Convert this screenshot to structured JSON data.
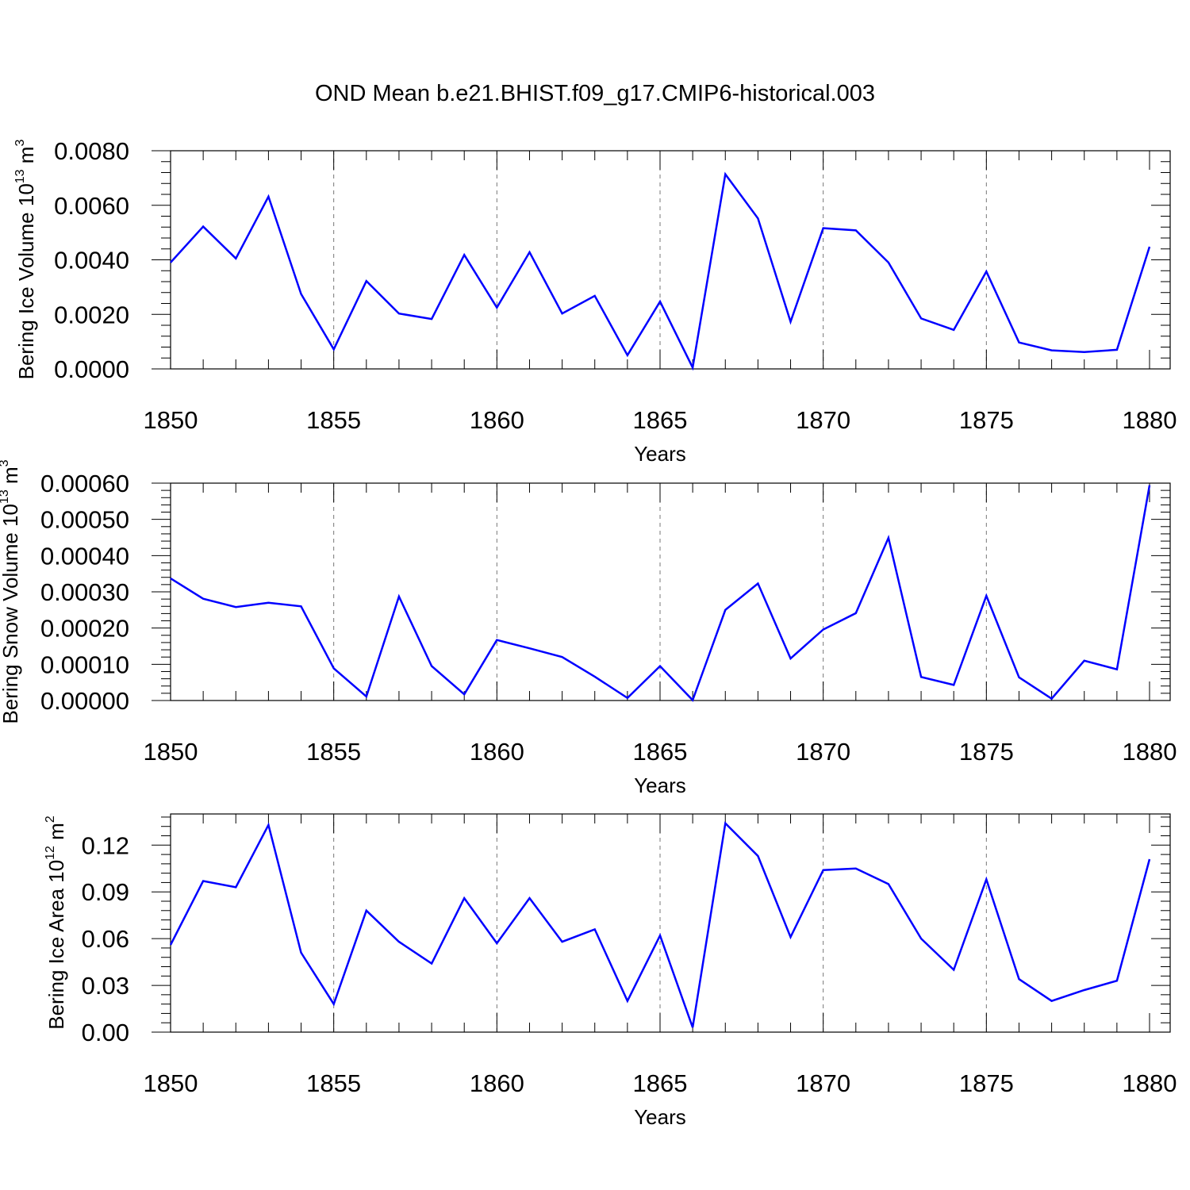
{
  "figure_title": "OND Mean b.e21.BHIST.f09_g17.CMIP6-historical.003",
  "colors": {
    "line": "#0000ff",
    "grid": "#777777",
    "axis": "#000000"
  },
  "chart_data": [
    {
      "type": "line",
      "title": "OND Mean b.e21.BHIST.f09_g17.CMIP6-historical.003",
      "xlabel": "Years",
      "ylabel": {
        "base": "Bering Ice Volume 10",
        "exp": "13",
        "unit": " m",
        "unit_exp": "3"
      },
      "xlim": [
        1850,
        1880
      ],
      "ylim": [
        0,
        0.008
      ],
      "ytick_values": [
        0,
        0.002,
        0.004,
        0.006,
        0.008
      ],
      "ytick_labels": [
        "0.0000",
        "0.0020",
        "0.0040",
        "0.0060",
        "0.0080"
      ],
      "xtick_values": [
        1850,
        1855,
        1860,
        1865,
        1870,
        1875,
        1880
      ],
      "xtick_labels": [
        "1850",
        "1855",
        "1860",
        "1865",
        "1870",
        "1875",
        "1880"
      ],
      "grid": "vertical dashed at major x ticks",
      "series": [
        {
          "name": "Bering Ice Volume",
          "x": [
            1850,
            1851,
            1852,
            1853,
            1854,
            1855,
            1856,
            1857,
            1858,
            1859,
            1860,
            1861,
            1862,
            1863,
            1864,
            1865,
            1866,
            1867,
            1868,
            1869,
            1870,
            1871,
            1872,
            1873,
            1874,
            1875,
            1876,
            1877,
            1878,
            1879,
            1880
          ],
          "values": [
            0.0039,
            0.00522,
            0.00405,
            0.00632,
            0.00275,
            0.00072,
            0.00322,
            0.00203,
            0.00183,
            0.00418,
            0.00225,
            0.00428,
            0.00203,
            0.00268,
            0.0005,
            0.00247,
            5e-05,
            0.00714,
            0.00552,
            0.00173,
            0.00516,
            0.00508,
            0.0039,
            0.00185,
            0.00143,
            0.00357,
            0.00097,
            0.00068,
            0.00062,
            0.0007,
            0.00448
          ]
        }
      ]
    },
    {
      "type": "line",
      "xlabel": "Years",
      "ylabel": {
        "base": "Bering Snow Volume 10",
        "exp": "13",
        "unit": " m",
        "unit_exp": "3"
      },
      "xlim": [
        1850,
        1880
      ],
      "ylim": [
        0,
        0.0006
      ],
      "ytick_values": [
        0,
        0.0001,
        0.0002,
        0.0003,
        0.0004,
        0.0005,
        0.0006
      ],
      "ytick_labels": [
        "0.00000",
        "0.00010",
        "0.00020",
        "0.00030",
        "0.00040",
        "0.00050",
        "0.00060"
      ],
      "xtick_values": [
        1850,
        1855,
        1860,
        1865,
        1870,
        1875,
        1880
      ],
      "xtick_labels": [
        "1850",
        "1855",
        "1860",
        "1865",
        "1870",
        "1875",
        "1880"
      ],
      "grid": "vertical dashed at major x ticks",
      "series": [
        {
          "name": "Bering Snow Volume",
          "x": [
            1850,
            1851,
            1852,
            1853,
            1854,
            1855,
            1856,
            1857,
            1858,
            1859,
            1860,
            1861,
            1862,
            1863,
            1864,
            1865,
            1866,
            1867,
            1868,
            1869,
            1870,
            1871,
            1872,
            1873,
            1874,
            1875,
            1876,
            1877,
            1878,
            1879,
            1880
          ],
          "values": [
            0.000337,
            0.000281,
            0.000258,
            0.00027,
            0.00026,
            8.9e-05,
            1.1e-05,
            0.000287,
            9.5e-05,
            1.7e-05,
            0.000167,
            0.000144,
            0.00012,
            6.6e-05,
            7e-06,
            9.5e-05,
            1e-06,
            0.00025,
            0.000323,
            0.000116,
            0.000196,
            0.000241,
            0.000449,
            6.5e-05,
            4.3e-05,
            0.000289,
            6.4e-05,
            5e-06,
            0.00011,
            8.6e-05,
            0.000594
          ]
        }
      ]
    },
    {
      "type": "line",
      "xlabel": "Years",
      "ylabel": {
        "base": "Bering Ice Area 10",
        "exp": "12",
        "unit": " m",
        "unit_exp": "2"
      },
      "xlim": [
        1850,
        1880
      ],
      "ylim": [
        0,
        0.14
      ],
      "ytick_values": [
        0,
        0.03,
        0.06,
        0.09,
        0.12
      ],
      "ytick_labels": [
        "0.00",
        "0.03",
        "0.06",
        "0.09",
        "0.12"
      ],
      "xtick_values": [
        1850,
        1855,
        1860,
        1865,
        1870,
        1875,
        1880
      ],
      "xtick_labels": [
        "1850",
        "1855",
        "1860",
        "1865",
        "1870",
        "1875",
        "1880"
      ],
      "grid": "vertical dashed at major x ticks",
      "series": [
        {
          "name": "Bering Ice Area",
          "x": [
            1850,
            1851,
            1852,
            1853,
            1854,
            1855,
            1856,
            1857,
            1858,
            1859,
            1860,
            1861,
            1862,
            1863,
            1864,
            1865,
            1866,
            1867,
            1868,
            1869,
            1870,
            1871,
            1872,
            1873,
            1874,
            1875,
            1876,
            1877,
            1878,
            1879,
            1880
          ],
          "values": [
            0.056,
            0.097,
            0.093,
            0.133,
            0.051,
            0.018,
            0.078,
            0.058,
            0.044,
            0.086,
            0.057,
            0.086,
            0.058,
            0.066,
            0.02,
            0.062,
            0.003,
            0.134,
            0.113,
            0.061,
            0.104,
            0.105,
            0.095,
            0.06,
            0.04,
            0.098,
            0.034,
            0.02,
            0.027,
            0.033,
            0.111
          ]
        }
      ]
    }
  ]
}
